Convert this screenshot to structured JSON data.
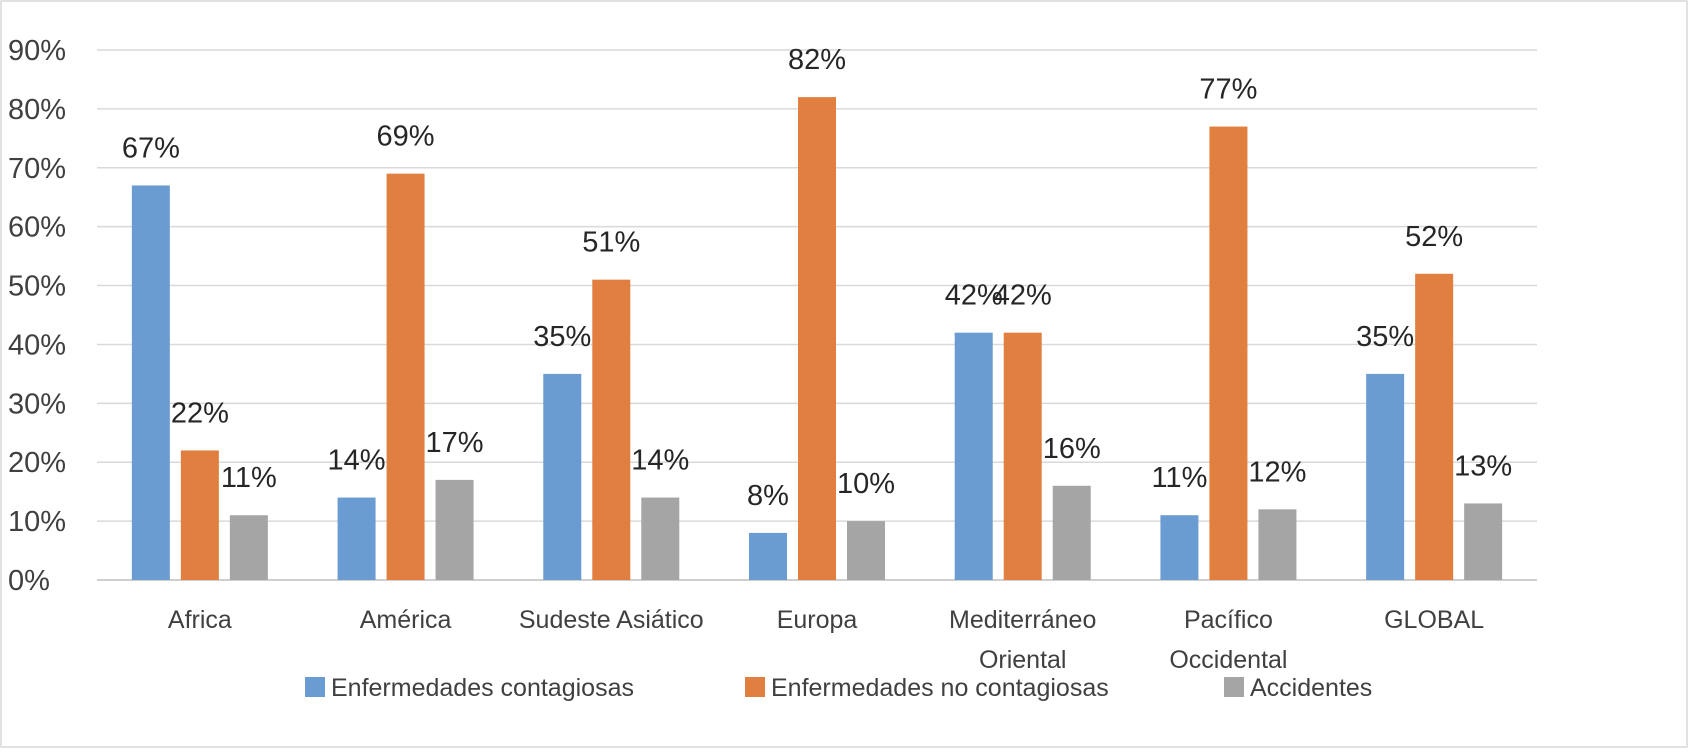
{
  "chart_data": {
    "type": "bar",
    "categories": [
      [
        "Africa"
      ],
      [
        "América"
      ],
      [
        "Sudeste  Asiático"
      ],
      [
        "Europa"
      ],
      [
        "Mediterráneo",
        "Oriental"
      ],
      [
        "Pacífico",
        "Occidental"
      ],
      [
        "GLOBAL"
      ]
    ],
    "series": [
      {
        "name": "Enfermedades contagiosas",
        "color": "#6a9bd1",
        "values": [
          67,
          14,
          35,
          8,
          42,
          11,
          35
        ],
        "labels": [
          "67%",
          "14%",
          "35%",
          "8%",
          "42%",
          "11%",
          "35%"
        ]
      },
      {
        "name": "Enfermedades no contagiosas",
        "color": "#e07f3f",
        "values": [
          22,
          69,
          51,
          82,
          42,
          77,
          52
        ],
        "labels": [
          "22%",
          "69%",
          "51%",
          "82%",
          "42%",
          "77%",
          "52%"
        ]
      },
      {
        "name": "Accidentes",
        "color": "#a5a5a5",
        "values": [
          11,
          17,
          14,
          10,
          16,
          12,
          13
        ],
        "labels": [
          "11%",
          "17%",
          "14%",
          "10%",
          "16%",
          "12%",
          "13%"
        ]
      }
    ],
    "yticks": [
      "0%",
      "10%",
      "20%",
      "30%",
      "40%",
      "50%",
      "60%",
      "70%",
      "80%",
      "90%"
    ],
    "ylim": [
      0,
      90
    ],
    "grid": true,
    "legend": "bottom"
  }
}
